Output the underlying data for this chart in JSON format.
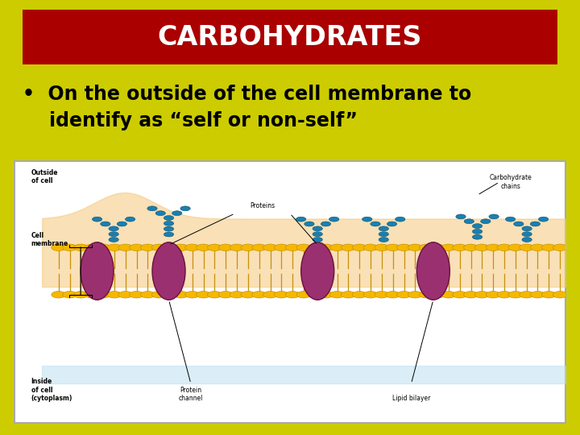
{
  "background_color": "#cccc00",
  "header_bg_color": "#aa0000",
  "header_text": "CARBOHYDRATES",
  "header_text_color": "#ffffff",
  "header_fontsize": 24,
  "bullet_text_line1": "•  On the outside of the cell membrane to",
  "bullet_text_line2": "    identify as “self or non-self”",
  "bullet_fontsize": 17,
  "bullet_color": "#000000",
  "title": ""
}
